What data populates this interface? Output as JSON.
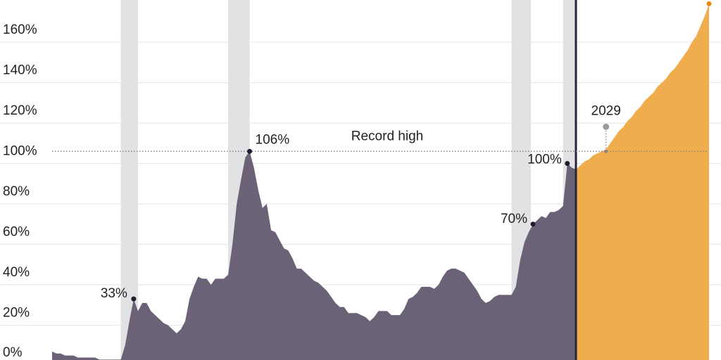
{
  "chart_data": {
    "type": "area",
    "xlim": [
      1900,
      2053
    ],
    "ylim": [
      0,
      180
    ],
    "yticks": [
      {
        "value": 0,
        "label": "0%"
      },
      {
        "value": 20,
        "label": "20%"
      },
      {
        "value": 40,
        "label": "40%"
      },
      {
        "value": 60,
        "label": "60%"
      },
      {
        "value": 80,
        "label": "80%"
      },
      {
        "value": 100,
        "label": "100%"
      },
      {
        "value": 120,
        "label": "120%"
      },
      {
        "value": 140,
        "label": "140%"
      },
      {
        "value": 160,
        "label": "160%"
      }
    ],
    "grid": true,
    "shaded_periods": [
      [
        1916,
        1920
      ],
      [
        1941,
        1946
      ],
      [
        2007,
        2011.5
      ],
      [
        2019,
        2022
      ]
    ],
    "divider_x": 2022,
    "series": [
      {
        "color": "#6b6278",
        "x": [
          1900,
          1901,
          1902,
          1903,
          1904,
          1905,
          1906,
          1907,
          1908,
          1909,
          1910,
          1911,
          1912,
          1913,
          1914,
          1915,
          1916,
          1917,
          1918,
          1919,
          1920,
          1921,
          1922,
          1923,
          1924,
          1925,
          1926,
          1927,
          1928,
          1929,
          1930,
          1931,
          1932,
          1933,
          1934,
          1935,
          1936,
          1937,
          1938,
          1939,
          1940,
          1941,
          1942,
          1943,
          1944,
          1945,
          1946,
          1947,
          1948,
          1949,
          1950,
          1951,
          1952,
          1953,
          1954,
          1955,
          1956,
          1957,
          1958,
          1959,
          1960,
          1961,
          1962,
          1963,
          1964,
          1965,
          1966,
          1967,
          1968,
          1969,
          1970,
          1971,
          1972,
          1973,
          1974,
          1975,
          1976,
          1977,
          1978,
          1979,
          1980,
          1981,
          1982,
          1983,
          1984,
          1985,
          1986,
          1987,
          1988,
          1989,
          1990,
          1991,
          1992,
          1993,
          1994,
          1995,
          1996,
          1997,
          1998,
          1999,
          2000,
          2001,
          2002,
          2003,
          2004,
          2005,
          2006,
          2007,
          2008,
          2009,
          2010,
          2011,
          2012,
          2013,
          2014,
          2015,
          2016,
          2017,
          2018,
          2019,
          2020,
          2021,
          2022
        ],
        "values": [
          7,
          6,
          6,
          5,
          5,
          5,
          4,
          4,
          4,
          4,
          4,
          3,
          3,
          3,
          3,
          3,
          3,
          10,
          22,
          33,
          27,
          31,
          31,
          27,
          25,
          23,
          21,
          20,
          18,
          16,
          18,
          22,
          33,
          39,
          44,
          43,
          43,
          40,
          43,
          43,
          43,
          45,
          60,
          80,
          92,
          103,
          106,
          98,
          87,
          78,
          80,
          67,
          66,
          62,
          58,
          57,
          53,
          48,
          48,
          46,
          44,
          42,
          41,
          39,
          37,
          34,
          31,
          29,
          29,
          26,
          26,
          26,
          25,
          24,
          22,
          24,
          27,
          27,
          27,
          25,
          25,
          25,
          28,
          33,
          34,
          36,
          39,
          39,
          39,
          38,
          40,
          44,
          47,
          48,
          48,
          47,
          46,
          43,
          40,
          37,
          33,
          31,
          32,
          34,
          35,
          35,
          35,
          35,
          39,
          52,
          61,
          66,
          70,
          72,
          74,
          73,
          76,
          76,
          77,
          79,
          100,
          98,
          97
        ]
      },
      {
        "color": "#f0ad4e",
        "x": [
          2022,
          2023,
          2024,
          2025,
          2026,
          2027,
          2028,
          2029,
          2030,
          2031,
          2032,
          2033,
          2034,
          2035,
          2036,
          2037,
          2038,
          2039,
          2040,
          2041,
          2042,
          2043,
          2044,
          2045,
          2046,
          2047,
          2048,
          2049,
          2050,
          2051,
          2052,
          2053
        ],
        "values": [
          97,
          99,
          101,
          102,
          104,
          105,
          106,
          107,
          110,
          113,
          116,
          118,
          121,
          123,
          126,
          128,
          131,
          133,
          135,
          138,
          140,
          142,
          145,
          147,
          150,
          153,
          156,
          160,
          163,
          168,
          173,
          179
        ]
      }
    ],
    "annotations": [
      {
        "x": 1919,
        "value": 33,
        "label": "33%"
      },
      {
        "x": 1946,
        "value": 106,
        "label": "106%"
      },
      {
        "x": 2012,
        "value": 70,
        "label": "70%"
      },
      {
        "x": 2020,
        "value": 100,
        "label": "100%"
      }
    ],
    "record_high": {
      "text": "Record high",
      "value": 106
    },
    "crossing": {
      "x": 2029,
      "label": "2029",
      "value": 106
    },
    "end_point": {
      "x": 2053,
      "value": 179
    }
  }
}
